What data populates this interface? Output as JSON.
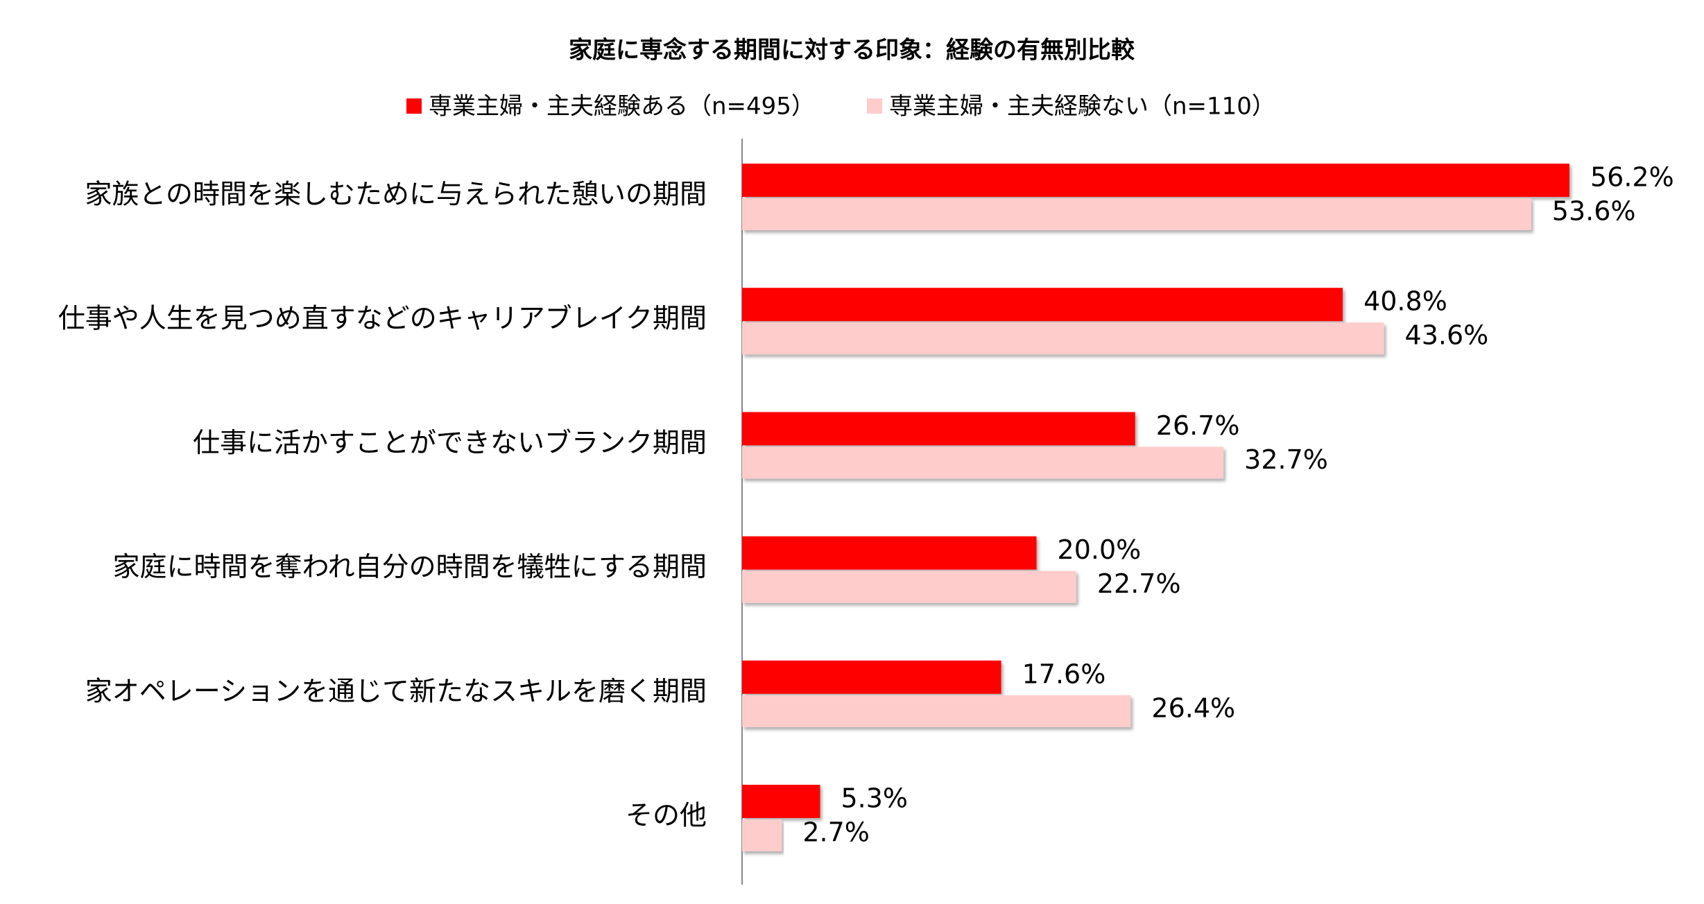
{
  "chart_data": {
    "type": "hbar",
    "title": "家庭に専念する期間に対する印象：経験の有無別比較",
    "categories": [
      "家族との時間を楽しむために与えられた憩いの期間",
      "仕事や人生を見つめ直すなどのキャリアブレイク期間",
      "仕事に活かすことができないブランク期間",
      "家庭に時間を奪われ自分の時間を犠牲にする期間",
      "家オペレーションを通じて新たなスキルを磨く期間",
      "その他"
    ],
    "series": [
      {
        "name": "専業主婦・主夫経験ある（n=495）",
        "color": "#ff0000",
        "values": [
          56.2,
          40.8,
          26.7,
          20.0,
          17.6,
          5.3
        ],
        "value_labels": [
          "56.2%",
          "40.8%",
          "26.7%",
          "20.0%",
          "17.6%",
          "5.3%"
        ]
      },
      {
        "name": "専業主婦・主夫経験ない（n=110）",
        "color": "#ffcccc",
        "values": [
          53.6,
          43.6,
          32.7,
          22.7,
          26.4,
          2.7
        ],
        "value_labels": [
          "53.6%",
          "43.6%",
          "32.7%",
          "22.7%",
          "26.4%",
          "2.7%"
        ]
      }
    ],
    "legend": "top"
  }
}
